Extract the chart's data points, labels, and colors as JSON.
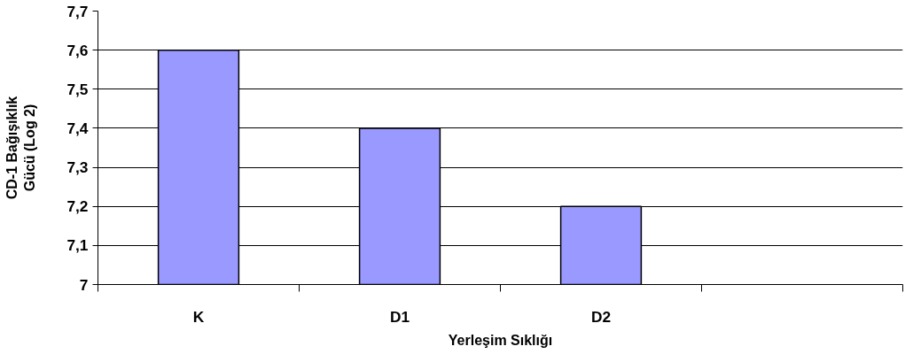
{
  "chart_data": {
    "type": "bar",
    "xlabel": "Yerleşim Sıklığı",
    "ylabel": "CD-1 Bağışıklık\nGücü (Log 2)",
    "categories": [
      "K",
      "D1",
      "D2",
      null
    ],
    "values": [
      7.6,
      7.4,
      7.2,
      null
    ],
    "color": "#9999ff",
    "ylim": [
      7,
      7.7
    ],
    "yticks": [
      7,
      {
        "value": 7.1,
        "label": "7,1"
      },
      {
        "value": 7.2,
        "label": "7,2"
      },
      {
        "value": 7.3,
        "label": "7,3"
      },
      {
        "value": 7.4,
        "label": "7,4"
      },
      {
        "value": 7.5,
        "label": "7,5"
      },
      {
        "value": 7.6,
        "label": "7,6"
      },
      {
        "value": 7.7,
        "label": "7,7"
      }
    ],
    "grid": "y"
  }
}
